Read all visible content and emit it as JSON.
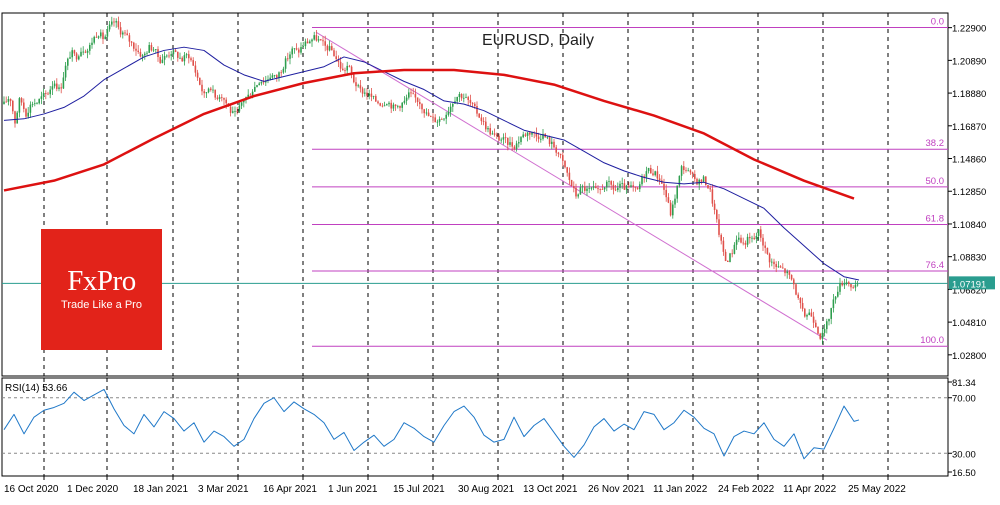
{
  "chart_data": [
    {
      "type": "candlestick",
      "title": "EURUSD, Daily",
      "x_tick_labels": [
        "16 Oct 2020",
        "1 Dec 2020",
        "18 Jan 2021",
        "3 Mar 2021",
        "16 Apr 2021",
        "1 Jun 2021",
        "15 Jul 2021",
        "30 Aug 2021",
        "13 Oct 2021",
        "26 Nov 2021",
        "11 Jan 2022",
        "24 Feb 2022",
        "11 Apr 2022",
        "25 May 2022"
      ],
      "y_tick_labels": [
        "1.22900",
        "1.20890",
        "1.18880",
        "1.16870",
        "1.14860",
        "1.12850",
        "1.10840",
        "1.08830",
        "1.06820",
        "1.04810",
        "1.02800"
      ],
      "ylim": [
        1.015,
        1.238
      ],
      "last_price": "1.07191",
      "colors": {
        "up": "#2e9e4e",
        "down": "#e0504a",
        "ma_fast": "#1f1fa0",
        "ma_slow": "#dd1111",
        "fib": "#c040c0",
        "price_line": "#2a9d8f",
        "trend": "#d070d0"
      },
      "price_path": [
        [
          0,
          1.182
        ],
        [
          6,
          1.187
        ],
        [
          11,
          1.171
        ],
        [
          16,
          1.186
        ],
        [
          22,
          1.176
        ],
        [
          28,
          1.183
        ],
        [
          33,
          1.183
        ],
        [
          39,
          1.187
        ],
        [
          44,
          1.189
        ],
        [
          50,
          1.196
        ],
        [
          56,
          1.19
        ],
        [
          61,
          1.204
        ],
        [
          67,
          1.214
        ],
        [
          72,
          1.211
        ],
        [
          78,
          1.216
        ],
        [
          84,
          1.215
        ],
        [
          89,
          1.222
        ],
        [
          94,
          1.226
        ],
        [
          100,
          1.222
        ],
        [
          106,
          1.23
        ],
        [
          111,
          1.233
        ],
        [
          116,
          1.227
        ],
        [
          122,
          1.224
        ],
        [
          128,
          1.219
        ],
        [
          133,
          1.215
        ],
        [
          139,
          1.211
        ],
        [
          145,
          1.217
        ],
        [
          150,
          1.216
        ],
        [
          156,
          1.209
        ],
        [
          161,
          1.211
        ],
        [
          167,
          1.214
        ],
        [
          172,
          1.213
        ],
        [
          178,
          1.209
        ],
        [
          184,
          1.213
        ],
        [
          189,
          1.206
        ],
        [
          195,
          1.196
        ],
        [
          200,
          1.187
        ],
        [
          206,
          1.194
        ],
        [
          211,
          1.186
        ],
        [
          217,
          1.188
        ],
        [
          222,
          1.183
        ],
        [
          228,
          1.176
        ],
        [
          233,
          1.176
        ],
        [
          239,
          1.185
        ],
        [
          244,
          1.187
        ],
        [
          250,
          1.192
        ],
        [
          256,
          1.197
        ],
        [
          261,
          1.196
        ],
        [
          267,
          1.2
        ],
        [
          272,
          1.198
        ],
        [
          278,
          1.204
        ],
        [
          283,
          1.21
        ],
        [
          289,
          1.216
        ],
        [
          294,
          1.214
        ],
        [
          300,
          1.219
        ],
        [
          306,
          1.221
        ],
        [
          311,
          1.223
        ],
        [
          317,
          1.22
        ],
        [
          322,
          1.217
        ],
        [
          328,
          1.215
        ],
        [
          333,
          1.209
        ],
        [
          339,
          1.202
        ],
        [
          344,
          1.206
        ],
        [
          350,
          1.196
        ],
        [
          355,
          1.191
        ],
        [
          361,
          1.189
        ],
        [
          366,
          1.187
        ],
        [
          372,
          1.184
        ],
        [
          378,
          1.182
        ],
        [
          383,
          1.184
        ],
        [
          389,
          1.18
        ],
        [
          394,
          1.181
        ],
        [
          400,
          1.183
        ],
        [
          405,
          1.188
        ],
        [
          411,
          1.186
        ],
        [
          416,
          1.183
        ],
        [
          422,
          1.176
        ],
        [
          428,
          1.173
        ],
        [
          433,
          1.172
        ],
        [
          439,
          1.174
        ],
        [
          444,
          1.178
        ],
        [
          450,
          1.185
        ],
        [
          455,
          1.188
        ],
        [
          461,
          1.186
        ],
        [
          467,
          1.182
        ],
        [
          472,
          1.178
        ],
        [
          478,
          1.172
        ],
        [
          483,
          1.167
        ],
        [
          489,
          1.163
        ],
        [
          494,
          1.161
        ],
        [
          500,
          1.16
        ],
        [
          505,
          1.158
        ],
        [
          511,
          1.156
        ],
        [
          517,
          1.162
        ],
        [
          522,
          1.164
        ],
        [
          528,
          1.165
        ],
        [
          533,
          1.162
        ],
        [
          539,
          1.163
        ],
        [
          544,
          1.16
        ],
        [
          550,
          1.156
        ],
        [
          556,
          1.15
        ],
        [
          561,
          1.143
        ],
        [
          567,
          1.133
        ],
        [
          572,
          1.126
        ],
        [
          578,
          1.131
        ],
        [
          583,
          1.129
        ],
        [
          589,
          1.13
        ],
        [
          594,
          1.128
        ],
        [
          600,
          1.132
        ],
        [
          606,
          1.133
        ],
        [
          611,
          1.129
        ],
        [
          617,
          1.132
        ],
        [
          622,
          1.13
        ],
        [
          628,
          1.131
        ],
        [
          633,
          1.128
        ],
        [
          639,
          1.138
        ],
        [
          644,
          1.142
        ],
        [
          650,
          1.14
        ],
        [
          656,
          1.136
        ],
        [
          661,
          1.128
        ],
        [
          667,
          1.114
        ],
        [
          672,
          1.128
        ],
        [
          678,
          1.144
        ],
        [
          683,
          1.141
        ],
        [
          689,
          1.137
        ],
        [
          694,
          1.134
        ],
        [
          700,
          1.136
        ],
        [
          706,
          1.129
        ],
        [
          711,
          1.115
        ],
        [
          717,
          1.097
        ],
        [
          722,
          1.085
        ],
        [
          728,
          1.091
        ],
        [
          733,
          1.101
        ],
        [
          739,
          1.096
        ],
        [
          744,
          1.099
        ],
        [
          750,
          1.099
        ],
        [
          755,
          1.104
        ],
        [
          761,
          1.093
        ],
        [
          766,
          1.086
        ],
        [
          772,
          1.082
        ],
        [
          778,
          1.081
        ],
        [
          783,
          1.078
        ],
        [
          789,
          1.073
        ],
        [
          794,
          1.062
        ],
        [
          800,
          1.052
        ],
        [
          806,
          1.054
        ],
        [
          811,
          1.048
        ],
        [
          817,
          1.038
        ],
        [
          822,
          1.045
        ],
        [
          828,
          1.058
        ],
        [
          833,
          1.068
        ],
        [
          839,
          1.073
        ],
        [
          844,
          1.073
        ],
        [
          850,
          1.068
        ],
        [
          855,
          1.072
        ]
      ],
      "ma_fast_path": [
        [
          0,
          1.172
        ],
        [
          20,
          1.173
        ],
        [
          40,
          1.176
        ],
        [
          60,
          1.18
        ],
        [
          80,
          1.187
        ],
        [
          100,
          1.197
        ],
        [
          120,
          1.204
        ],
        [
          140,
          1.211
        ],
        [
          160,
          1.215
        ],
        [
          180,
          1.217
        ],
        [
          200,
          1.215
        ],
        [
          220,
          1.206
        ],
        [
          240,
          1.2
        ],
        [
          260,
          1.196
        ],
        [
          280,
          1.199
        ],
        [
          300,
          1.202
        ],
        [
          320,
          1.205
        ],
        [
          340,
          1.211
        ],
        [
          360,
          1.208
        ],
        [
          380,
          1.202
        ],
        [
          400,
          1.196
        ],
        [
          420,
          1.191
        ],
        [
          440,
          1.184
        ],
        [
          460,
          1.182
        ],
        [
          480,
          1.178
        ],
        [
          500,
          1.172
        ],
        [
          520,
          1.166
        ],
        [
          540,
          1.163
        ],
        [
          560,
          1.16
        ],
        [
          580,
          1.153
        ],
        [
          600,
          1.146
        ],
        [
          620,
          1.141
        ],
        [
          640,
          1.137
        ],
        [
          660,
          1.134
        ],
        [
          680,
          1.133
        ],
        [
          700,
          1.134
        ],
        [
          720,
          1.13
        ],
        [
          740,
          1.124
        ],
        [
          760,
          1.118
        ],
        [
          780,
          1.106
        ],
        [
          800,
          1.095
        ],
        [
          820,
          1.084
        ],
        [
          840,
          1.076
        ],
        [
          855,
          1.074
        ]
      ],
      "ma_slow_path": [
        [
          0,
          1.129
        ],
        [
          50,
          1.135
        ],
        [
          100,
          1.145
        ],
        [
          150,
          1.161
        ],
        [
          200,
          1.176
        ],
        [
          250,
          1.187
        ],
        [
          300,
          1.195
        ],
        [
          350,
          1.201
        ],
        [
          400,
          1.203
        ],
        [
          450,
          1.203
        ],
        [
          500,
          1.2
        ],
        [
          550,
          1.194
        ],
        [
          600,
          1.184
        ],
        [
          650,
          1.175
        ],
        [
          700,
          1.164
        ],
        [
          750,
          1.148
        ],
        [
          800,
          1.135
        ],
        [
          850,
          1.124
        ]
      ],
      "candle_seed": 17,
      "fibonacci": [
        {
          "label": "0.0",
          "value": 1.2291
        },
        {
          "label": "38.2",
          "value": 1.1543
        },
        {
          "label": "50.0",
          "value": 1.1312
        },
        {
          "label": "61.8",
          "value": 1.1081
        },
        {
          "label": "76.4",
          "value": 1.0795
        },
        {
          "label": "100.0",
          "value": 1.0333
        }
      ],
      "trendline": [
        [
          306,
          1.2262
        ],
        [
          817,
          1.037
        ]
      ]
    },
    {
      "type": "line",
      "title": "RSI(14) 53.66",
      "y_tick_labels": [
        "81.34",
        "70.00",
        "30.00",
        "16.50"
      ],
      "ylim": [
        16.5,
        81.34
      ],
      "levels": [
        70,
        30
      ],
      "rsi_path": [
        [
          0,
          47
        ],
        [
          10,
          58
        ],
        [
          20,
          44
        ],
        [
          30,
          56
        ],
        [
          40,
          61
        ],
        [
          50,
          63
        ],
        [
          60,
          66
        ],
        [
          70,
          74
        ],
        [
          80,
          68
        ],
        [
          90,
          72
        ],
        [
          100,
          76
        ],
        [
          110,
          62
        ],
        [
          120,
          50
        ],
        [
          130,
          44
        ],
        [
          140,
          58
        ],
        [
          150,
          49
        ],
        [
          160,
          60
        ],
        [
          170,
          55
        ],
        [
          180,
          46
        ],
        [
          190,
          52
        ],
        [
          200,
          38
        ],
        [
          210,
          46
        ],
        [
          220,
          42
        ],
        [
          230,
          35
        ],
        [
          240,
          40
        ],
        [
          250,
          55
        ],
        [
          260,
          66
        ],
        [
          270,
          70
        ],
        [
          280,
          60
        ],
        [
          290,
          67
        ],
        [
          300,
          62
        ],
        [
          310,
          58
        ],
        [
          320,
          52
        ],
        [
          330,
          40
        ],
        [
          340,
          45
        ],
        [
          350,
          32
        ],
        [
          360,
          38
        ],
        [
          370,
          43
        ],
        [
          380,
          35
        ],
        [
          390,
          40
        ],
        [
          400,
          52
        ],
        [
          410,
          48
        ],
        [
          420,
          42
        ],
        [
          430,
          38
        ],
        [
          440,
          50
        ],
        [
          450,
          60
        ],
        [
          460,
          64
        ],
        [
          470,
          56
        ],
        [
          480,
          43
        ],
        [
          490,
          38
        ],
        [
          500,
          40
        ],
        [
          510,
          56
        ],
        [
          520,
          42
        ],
        [
          530,
          50
        ],
        [
          540,
          55
        ],
        [
          550,
          45
        ],
        [
          560,
          35
        ],
        [
          570,
          27
        ],
        [
          580,
          36
        ],
        [
          590,
          49
        ],
        [
          600,
          55
        ],
        [
          610,
          46
        ],
        [
          620,
          51
        ],
        [
          630,
          47
        ],
        [
          640,
          60
        ],
        [
          650,
          58
        ],
        [
          660,
          47
        ],
        [
          670,
          52
        ],
        [
          680,
          61
        ],
        [
          690,
          56
        ],
        [
          700,
          48
        ],
        [
          710,
          44
        ],
        [
          720,
          28
        ],
        [
          730,
          42
        ],
        [
          740,
          46
        ],
        [
          750,
          44
        ],
        [
          760,
          52
        ],
        [
          770,
          40
        ],
        [
          780,
          35
        ],
        [
          790,
          44
        ],
        [
          800,
          26
        ],
        [
          810,
          34
        ],
        [
          820,
          33
        ],
        [
          830,
          48
        ],
        [
          840,
          64
        ],
        [
          850,
          53
        ],
        [
          855,
          54
        ]
      ]
    }
  ],
  "logo": {
    "brand": "FxPro",
    "tagline": "Trade Like a Pro"
  }
}
